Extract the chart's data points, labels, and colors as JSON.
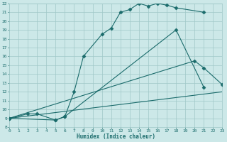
{
  "xlabel": "Humidex (Indice chaleur)",
  "bg_color": "#cce8e8",
  "line_color": "#1a6b6b",
  "grid_color": "#a0c8c8",
  "xlim": [
    0,
    23
  ],
  "ylim": [
    8,
    22
  ],
  "xticks": [
    0,
    1,
    2,
    3,
    4,
    5,
    6,
    7,
    8,
    9,
    10,
    11,
    12,
    13,
    14,
    15,
    16,
    17,
    18,
    19,
    20,
    21,
    22,
    23
  ],
  "yticks": [
    8,
    9,
    10,
    11,
    12,
    13,
    14,
    15,
    16,
    17,
    18,
    19,
    20,
    21,
    22
  ],
  "line1_x": [
    0,
    2,
    3,
    5,
    6,
    7,
    8,
    10,
    11,
    12,
    13,
    14,
    15,
    16,
    17,
    18,
    21
  ],
  "line1_y": [
    9,
    9.5,
    9.5,
    8.8,
    9.2,
    12.0,
    16.0,
    18.5,
    19.2,
    21.0,
    21.3,
    22.0,
    21.7,
    22.0,
    21.8,
    21.5,
    21.0
  ],
  "line2_x": [
    0,
    5,
    6,
    18,
    21
  ],
  "line2_y": [
    9,
    8.8,
    9.2,
    19.0,
    12.5
  ],
  "line3_x": [
    0,
    20,
    21,
    23
  ],
  "line3_y": [
    9,
    15.5,
    14.7,
    12.8
  ],
  "line4_x": [
    0,
    23
  ],
  "line4_y": [
    9,
    12.0
  ],
  "markersize": 2.5
}
